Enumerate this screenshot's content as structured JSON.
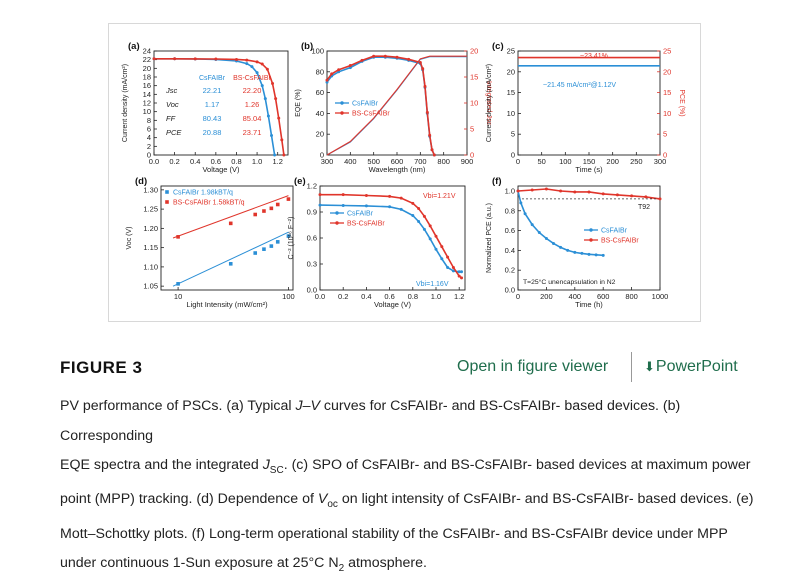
{
  "header": {
    "figure_label": "FIGURE 3",
    "viewer_link": "Open in figure viewer",
    "powerpoint_link": "PowerPoint",
    "download_icon": "download-arrow-icon"
  },
  "caption": {
    "t1": "PV performance of PSCs. (a) Typical ",
    "t1_j": "J",
    "t1_v": "V",
    "t2": " curves for CsFAIBr- and BS-CsFAIBr- based devices. (b) Corresponding",
    "t3": "EQE spectra and the integrated ",
    "t3_j": "J",
    "t3_sub": "SC",
    "t4": ". (c) SPO of CsFAIBr- and BS-CsFAIBr- based devices at maximum power",
    "t5": "point (MPP) tracking. (d) Dependence of ",
    "t5_v": "V",
    "t5_sub": "oc",
    "t6": " on light intensity of CsFAIBr- and BS-CsFAIBr- based devices. (e)",
    "t7": "Mott–Schottky plots. (f) Long-term operational stability of the CsFAIBr- and BS-CsFAIBr device under MPP",
    "t8": "under continuous 1-Sun exposure at 25°C N",
    "t8_sub": "2",
    "t8_end": " atmosphere."
  },
  "colors": {
    "blue": "#2b8fd6",
    "red": "#e0352b",
    "black": "#222222"
  },
  "chart_data": [
    {
      "panel": "(a)",
      "type": "line",
      "xlabel": "Voltage (V)",
      "ylabel": "Current density (mA/cm²)",
      "xlim": [
        0,
        1.3
      ],
      "ylim": [
        0,
        24
      ],
      "xticks": [
        0.0,
        0.2,
        0.4,
        0.6,
        0.8,
        1.0,
        1.2
      ],
      "yticks": [
        0,
        2,
        4,
        6,
        8,
        10,
        12,
        14,
        16,
        18,
        20,
        22,
        24
      ],
      "table": {
        "headers": [
          "",
          "CsFAIBr",
          "BS-CsFAIBr"
        ],
        "rows": [
          {
            "label": "Jsc",
            "a": "22.21",
            "b": "22.20"
          },
          {
            "label": "Voc",
            "a": "1.17",
            "b": "1.26"
          },
          {
            "label": "FF",
            "a": "80.43",
            "b": "85.04"
          },
          {
            "label": "PCE",
            "a": "20.88",
            "b": "23.71"
          }
        ]
      },
      "series": [
        {
          "name": "CsFAIBr",
          "color": "blue",
          "x": [
            0,
            0.2,
            0.4,
            0.6,
            0.8,
            0.9,
            0.95,
            1.0,
            1.05,
            1.08,
            1.11,
            1.14,
            1.17
          ],
          "y": [
            22.21,
            22.2,
            22.15,
            22.05,
            21.7,
            21.1,
            20.4,
            19.0,
            16.0,
            13.0,
            9.0,
            4.5,
            0
          ]
        },
        {
          "name": "BS-CsFAIBr",
          "color": "red",
          "x": [
            0,
            0.2,
            0.4,
            0.6,
            0.8,
            0.9,
            1.0,
            1.05,
            1.1,
            1.15,
            1.18,
            1.21,
            1.24,
            1.26
          ],
          "y": [
            22.2,
            22.2,
            22.18,
            22.15,
            22.05,
            21.9,
            21.5,
            21.0,
            19.8,
            16.5,
            13.0,
            8.5,
            3.5,
            0
          ]
        }
      ]
    },
    {
      "panel": "(b)",
      "type": "line",
      "xlabel": "Wavelength (nm)",
      "ylabel": "EQE (%)",
      "y2label": "Integrated Jsc",
      "xlim": [
        300,
        900
      ],
      "ylim": [
        0,
        100
      ],
      "y2lim": [
        0,
        20
      ],
      "xticks": [
        300,
        400,
        500,
        600,
        700,
        800,
        900
      ],
      "yticks": [
        0,
        20,
        40,
        60,
        80,
        100
      ],
      "y2ticks": [
        0,
        5,
        10,
        15,
        20
      ],
      "legend": [
        "CsFAIBr",
        "BS-CsFAIBr"
      ],
      "series": [
        {
          "name": "CsFAIBr EQE",
          "color": "blue",
          "x": [
            300,
            320,
            350,
            400,
            450,
            500,
            550,
            600,
            650,
            700,
            710,
            720,
            730,
            740,
            750,
            760
          ],
          "y": [
            70,
            76,
            80,
            84,
            90,
            94,
            94,
            93,
            91,
            88,
            82,
            65,
            40,
            18,
            5,
            0
          ]
        },
        {
          "name": "BS-CsFAIBr EQE",
          "color": "red",
          "x": [
            300,
            320,
            350,
            400,
            450,
            500,
            550,
            600,
            650,
            700,
            710,
            720,
            730,
            740,
            750,
            760
          ],
          "y": [
            72,
            78,
            82,
            86,
            91,
            95,
            95,
            94,
            92,
            89,
            83,
            66,
            41,
            19,
            5,
            0
          ]
        },
        {
          "name": "CsFAIBr integrated Jsc",
          "color": "blue",
          "axis": "y2",
          "x": [
            300,
            400,
            500,
            600,
            700,
            740,
            760,
            900
          ],
          "y": [
            0,
            2.5,
            7.0,
            12.5,
            18.4,
            18.9,
            18.9,
            18.9
          ]
        },
        {
          "name": "BS-CsFAIBr integrated Jsc",
          "color": "red",
          "axis": "y2",
          "x": [
            300,
            400,
            500,
            600,
            700,
            740,
            760,
            900
          ],
          "y": [
            0,
            2.6,
            7.1,
            12.6,
            18.5,
            19.0,
            19.0,
            19.0
          ]
        }
      ]
    },
    {
      "panel": "(c)",
      "type": "line",
      "xlabel": "Time (s)",
      "ylabel": "Current density (mA/cm²)",
      "y2label": "PCE (%)",
      "xlim": [
        0,
        300
      ],
      "ylim": [
        0,
        25
      ],
      "y2lim": [
        0,
        25
      ],
      "xticks": [
        0,
        50,
        100,
        150,
        200,
        250,
        300
      ],
      "yticks": [
        0,
        5,
        10,
        15,
        20,
        25
      ],
      "y2ticks": [
        0,
        5,
        10,
        15,
        20,
        25
      ],
      "annotations": [
        "~23.41%",
        "~21.45 mA/cm²@1.12V"
      ],
      "series": [
        {
          "name": "PCE",
          "color": "red",
          "x": [
            0,
            300
          ],
          "y": [
            23.41,
            23.41
          ]
        },
        {
          "name": "Current density",
          "color": "blue",
          "x": [
            0,
            300
          ],
          "y": [
            21.45,
            21.45
          ]
        }
      ]
    },
    {
      "panel": "(d)",
      "type": "scatter",
      "xlabel": "Light Intensity (mW/cm²)",
      "ylabel": "Voc (V)",
      "xscale": "log",
      "xlim": [
        7,
        110
      ],
      "ylim": [
        1.04,
        1.31
      ],
      "xticks": [
        10,
        100
      ],
      "yticks": [
        1.05,
        1.1,
        1.15,
        1.2,
        1.25,
        1.3
      ],
      "legend": [
        "CsFAIBr 1.98kBT/q",
        "BS-CsFAIBr 1.58kBT/q"
      ],
      "series": [
        {
          "name": "CsFAIBr",
          "color": "blue",
          "x": [
            10,
            30,
            50,
            60,
            70,
            80,
            100
          ],
          "y": [
            1.056,
            1.108,
            1.136,
            1.146,
            1.154,
            1.165,
            1.18
          ],
          "fit": [
            [
              9,
              1.05
            ],
            [
              100,
              1.19
            ]
          ]
        },
        {
          "name": "BS-CsFAIBr",
          "color": "red",
          "x": [
            10,
            30,
            50,
            60,
            70,
            80,
            100
          ],
          "y": [
            1.178,
            1.213,
            1.236,
            1.245,
            1.252,
            1.262,
            1.276
          ],
          "fit": [
            [
              9,
              1.175
            ],
            [
              100,
              1.285
            ]
          ]
        }
      ]
    },
    {
      "panel": "(e)",
      "type": "line",
      "xlabel": "Voltage (V)",
      "ylabel": "C⁻² (10¹⁶ F⁻²)",
      "xlim": [
        0,
        1.25
      ],
      "ylim": [
        0,
        1.2
      ],
      "xticks": [
        0.0,
        0.2,
        0.4,
        0.6,
        0.8,
        1.0,
        1.2
      ],
      "yticks": [
        0.0,
        0.3,
        0.6,
        0.9,
        1.2
      ],
      "legend": [
        "CsFAIBr",
        "BS-CsFAIBr"
      ],
      "annotations": [
        "Vbi=1.21V",
        "Vbi=1.16V"
      ],
      "series": [
        {
          "name": "CsFAIBr",
          "color": "blue",
          "x": [
            0,
            0.2,
            0.4,
            0.6,
            0.7,
            0.8,
            0.85,
            0.9,
            0.95,
            1.0,
            1.05,
            1.1,
            1.15,
            1.2,
            1.22
          ],
          "y": [
            0.98,
            0.975,
            0.97,
            0.96,
            0.93,
            0.86,
            0.79,
            0.7,
            0.59,
            0.47,
            0.36,
            0.26,
            0.22,
            0.21,
            0.21
          ]
        },
        {
          "name": "BS-CsFAIBr",
          "color": "red",
          "x": [
            0,
            0.2,
            0.4,
            0.6,
            0.7,
            0.8,
            0.85,
            0.9,
            0.95,
            1.0,
            1.05,
            1.1,
            1.15,
            1.2,
            1.22
          ],
          "y": [
            1.1,
            1.1,
            1.09,
            1.08,
            1.06,
            1.0,
            0.94,
            0.85,
            0.74,
            0.62,
            0.5,
            0.38,
            0.26,
            0.16,
            0.14
          ]
        }
      ]
    },
    {
      "panel": "(f)",
      "type": "line",
      "xlabel": "Time (h)",
      "ylabel": "Normalized PCE (a.u.)",
      "xlim": [
        0,
        1000
      ],
      "ylim": [
        0,
        1.05
      ],
      "xticks": [
        0,
        200,
        400,
        600,
        800,
        1000
      ],
      "yticks": [
        0.0,
        0.2,
        0.4,
        0.6,
        0.8,
        1.0
      ],
      "legend": [
        "CsFAIBr",
        "BS-CsFAIBr"
      ],
      "annotations": [
        "T92",
        "T=25°C unencapsulation in N2"
      ],
      "reference_line": 0.92,
      "series": [
        {
          "name": "CsFAIBr",
          "color": "blue",
          "x": [
            0,
            20,
            50,
            100,
            150,
            200,
            250,
            300,
            350,
            400,
            450,
            500,
            550,
            600
          ],
          "y": [
            1.0,
            0.88,
            0.77,
            0.66,
            0.58,
            0.52,
            0.47,
            0.43,
            0.4,
            0.38,
            0.37,
            0.36,
            0.355,
            0.35
          ]
        },
        {
          "name": "BS-CsFAIBr",
          "color": "red",
          "x": [
            0,
            100,
            200,
            300,
            400,
            500,
            600,
            700,
            800,
            900,
            1000
          ],
          "y": [
            1.0,
            1.01,
            1.02,
            1.0,
            0.99,
            0.99,
            0.97,
            0.96,
            0.95,
            0.94,
            0.92
          ]
        }
      ]
    }
  ]
}
